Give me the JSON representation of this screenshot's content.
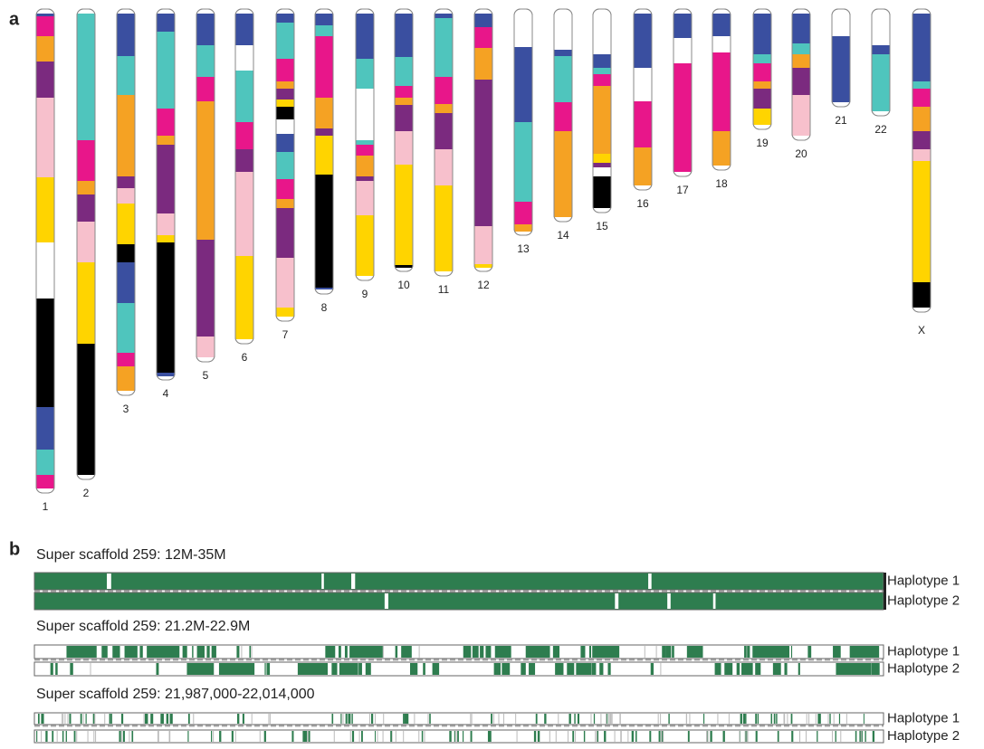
{
  "panel_a": {
    "label": "a",
    "chromosomes": [
      "1",
      "2",
      "3",
      "4",
      "5",
      "6",
      "7",
      "8",
      "9",
      "10",
      "11",
      "12",
      "13",
      "14",
      "15",
      "16",
      "17",
      "18",
      "19",
      "20",
      "21",
      "22",
      "X"
    ]
  },
  "panel_b": {
    "label": "b",
    "tracks": [
      {
        "title": "Super scaffold 259: 12M-35M",
        "haplotypes": [
          "Haplotype 1",
          "Haplotype 2"
        ]
      },
      {
        "title": "Super scaffold 259: 21.2M-22.9M",
        "haplotypes": [
          "Haplotype 1",
          "Haplotype 2"
        ]
      },
      {
        "title": "Super scaffold 259: 21,987,000-22,014,000",
        "haplotypes": [
          "Haplotype 1",
          "Haplotype 2"
        ]
      }
    ]
  }
}
